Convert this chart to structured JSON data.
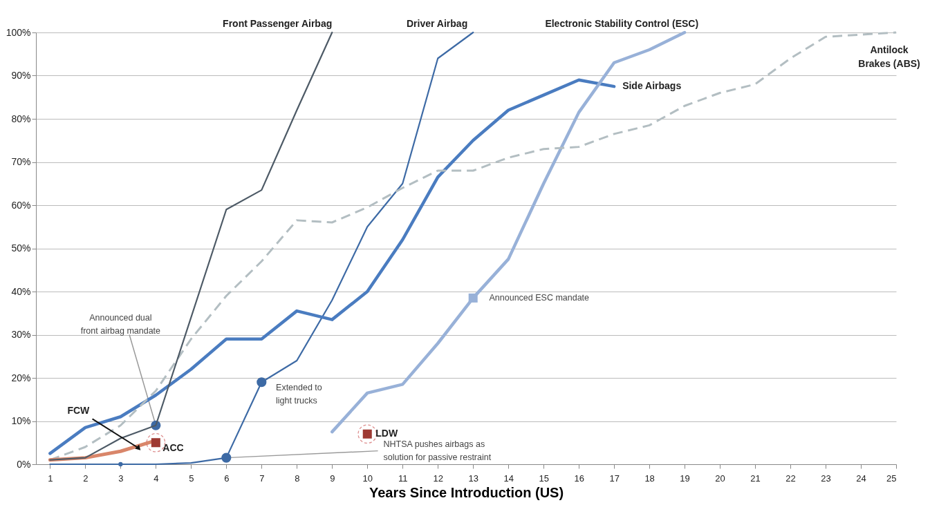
{
  "chart_data": {
    "type": "line",
    "xlabel": "Years Since Introduction (US)",
    "series": [
      {
        "name": "Front Passenger Airbag",
        "color": "#4d5a66",
        "line_style": "solid",
        "x": [
          1,
          2,
          3,
          4,
          6,
          7,
          8,
          9
        ],
        "values": [
          1,
          1.5,
          6,
          9,
          59,
          63.5,
          82,
          100
        ]
      },
      {
        "name": "Driver Airbag",
        "color": "#3d6aa5",
        "line_style": "solid",
        "x": [
          1,
          2,
          3,
          4,
          5,
          6,
          7,
          8,
          9,
          10,
          11,
          12,
          13
        ],
        "values": [
          0,
          0,
          0,
          0,
          0.3,
          1.5,
          19,
          24,
          38,
          55,
          65,
          94,
          100
        ]
      },
      {
        "name": "Side Airbags",
        "color": "#4a7cc0",
        "line_style": "solid",
        "x": [
          1,
          2,
          3,
          4,
          5,
          6,
          7,
          8,
          9,
          10,
          11,
          12,
          13,
          14,
          15,
          16,
          17
        ],
        "values": [
          2.5,
          8.5,
          11,
          16,
          22,
          29,
          29,
          35.5,
          33.5,
          40,
          52,
          66.5,
          75,
          82,
          85.5,
          89,
          87.5
        ]
      },
      {
        "name": "Electronic Stability Control (ESC)",
        "color": "#98b1d8",
        "line_style": "solid",
        "x": [
          9,
          10,
          11,
          12,
          13,
          14,
          15,
          16,
          17,
          18,
          19
        ],
        "values": [
          7.5,
          16.5,
          18.5,
          28,
          38.5,
          47.5,
          65,
          81.5,
          93,
          96,
          100
        ]
      },
      {
        "name": "Antilock Brakes (ABS)",
        "color": "#b3bec2",
        "line_style": "dashed",
        "x": [
          1,
          2,
          3,
          4,
          5,
          6,
          7,
          8,
          9,
          10,
          11,
          12,
          13,
          14,
          15,
          16,
          17,
          18,
          19,
          20,
          21,
          22,
          23,
          24,
          25
        ],
        "values": [
          1,
          4,
          9,
          17,
          29,
          39,
          47,
          56.5,
          56,
          59.5,
          64,
          68,
          68,
          71,
          73,
          73.5,
          76.5,
          78.5,
          83,
          86,
          88,
          94,
          99,
          99.5,
          100
        ]
      },
      {
        "name": "FCW",
        "color": "#d9866a",
        "line_style": "solid",
        "x": [
          1,
          2,
          3,
          4
        ],
        "values": [
          1,
          1.5,
          3,
          5.5
        ]
      },
      {
        "name": "ACC",
        "type": "scatter",
        "marker": "square",
        "color": "#9e3a33",
        "x": [
          4
        ],
        "values": [
          5
        ]
      },
      {
        "name": "LDW",
        "type": "scatter",
        "marker": "square",
        "color": "#9e3a33",
        "x": [
          10
        ],
        "values": [
          7
        ]
      },
      {
        "type": "scatter",
        "marker": "circle",
        "color": "#3d6aa5",
        "x": [
          3,
          4,
          6,
          7
        ],
        "values": [
          0,
          9,
          1.5,
          19
        ]
      },
      {
        "type": "scatter",
        "marker": "square",
        "color": "#98b1d8",
        "x": [
          13
        ],
        "values": [
          38.5
        ]
      }
    ],
    "xlim": [
      0.6,
      25
    ],
    "xticks": [
      1,
      2,
      3,
      4,
      5,
      6,
      7,
      8,
      9,
      10,
      11,
      12,
      13,
      14,
      15,
      16,
      17,
      18,
      19,
      20,
      21,
      22,
      23,
      24,
      25
    ],
    "ylim": [
      0,
      100
    ],
    "yticks": [
      {
        "value": 0,
        "label": "0%"
      },
      {
        "value": 10,
        "label": "10%"
      },
      {
        "value": 20,
        "label": "20%"
      },
      {
        "value": 30,
        "label": "30%"
      },
      {
        "value": 40,
        "label": "40%"
      },
      {
        "value": 50,
        "label": "50%"
      },
      {
        "value": 60,
        "label": "60%"
      },
      {
        "value": 70,
        "label": "70%"
      },
      {
        "value": 80,
        "label": "80%"
      },
      {
        "value": 90,
        "label": "90%"
      },
      {
        "value": 100,
        "label": "100%"
      }
    ],
    "grid": "y",
    "annotations": [
      {
        "text": "Announced dual front airbag mandate",
        "x": 4,
        "y": 9
      },
      {
        "text": "NHTSA pushes airbags as solution for passive restraint",
        "x": 6,
        "y": 1.5
      },
      {
        "text": "Extended to light trucks",
        "x": 7,
        "y": 19
      },
      {
        "text": "Announced ESC mandate",
        "x": 13,
        "y": 38.5
      }
    ]
  }
}
